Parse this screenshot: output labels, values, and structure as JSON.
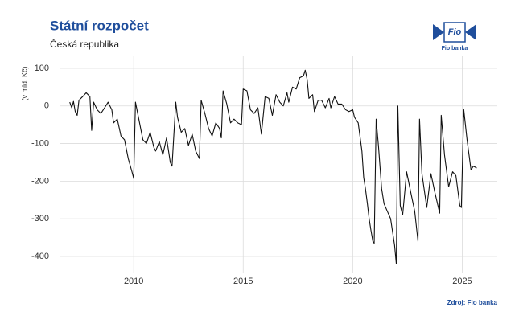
{
  "chart_data": {
    "type": "line",
    "title": "Státní rozpočet",
    "subtitle": "Česká republika",
    "y_label": "(v mld. Kč)",
    "source": "Zdroj: Fio banka",
    "logo": {
      "mark": "Fio",
      "caption": "Fio banka"
    },
    "color": "#111111",
    "grid": true,
    "xlim": [
      2006.65,
      2026.6
    ],
    "xticks": [
      2010,
      2015,
      2020,
      2025
    ],
    "ylim": [
      -445,
      132
    ],
    "yticks": [
      100,
      0,
      -100,
      -200,
      -300,
      -400
    ],
    "x": [
      2007.08,
      2007.17,
      2007.25,
      2007.33,
      2007.42,
      2007.5,
      2007.67,
      2007.83,
      2008.0,
      2008.08,
      2008.17,
      2008.33,
      2008.5,
      2008.67,
      2008.83,
      2009.0,
      2009.08,
      2009.25,
      2009.42,
      2009.58,
      2009.75,
      2009.92,
      2010.0,
      2010.08,
      2010.25,
      2010.42,
      2010.58,
      2010.75,
      2010.92,
      2011.0,
      2011.17,
      2011.33,
      2011.5,
      2011.67,
      2011.75,
      2011.92,
      2012.0,
      2012.17,
      2012.33,
      2012.5,
      2012.67,
      2012.83,
      2013.0,
      2013.08,
      2013.25,
      2013.42,
      2013.58,
      2013.75,
      2013.92,
      2014.0,
      2014.08,
      2014.25,
      2014.42,
      2014.58,
      2014.75,
      2014.92,
      2015.0,
      2015.17,
      2015.33,
      2015.5,
      2015.67,
      2015.83,
      2016.0,
      2016.17,
      2016.33,
      2016.5,
      2016.67,
      2016.83,
      2017.0,
      2017.08,
      2017.25,
      2017.42,
      2017.58,
      2017.75,
      2017.83,
      2017.92,
      2018.0,
      2018.17,
      2018.25,
      2018.42,
      2018.58,
      2018.75,
      2018.92,
      2019.0,
      2019.17,
      2019.33,
      2019.5,
      2019.67,
      2019.83,
      2020.0,
      2020.08,
      2020.25,
      2020.42,
      2020.5,
      2020.58,
      2020.67,
      2020.75,
      2020.83,
      2020.92,
      2020.98,
      2021.07,
      2021.18,
      2021.32,
      2021.43,
      2021.58,
      2021.73,
      2021.91,
      2021.99,
      2022.06,
      2022.17,
      2022.28,
      2022.46,
      2022.65,
      2022.83,
      2022.98,
      2023.05,
      2023.16,
      2023.38,
      2023.57,
      2023.75,
      2023.97,
      2024.04,
      2024.19,
      2024.38,
      2024.56,
      2024.71,
      2024.89,
      2024.96,
      2025.07,
      2025.22,
      2025.4,
      2025.51,
      2025.66
    ],
    "values": [
      10,
      -5,
      12,
      -15,
      -25,
      15,
      25,
      35,
      25,
      -65,
      10,
      -10,
      -20,
      -5,
      10,
      -10,
      -45,
      -35,
      -80,
      -90,
      -140,
      -175,
      -193,
      10,
      -40,
      -90,
      -100,
      -70,
      -110,
      -120,
      -95,
      -130,
      -85,
      -150,
      -160,
      10,
      -30,
      -70,
      -60,
      -105,
      -75,
      -120,
      -140,
      15,
      -20,
      -60,
      -80,
      -45,
      -60,
      -85,
      40,
      5,
      -45,
      -35,
      -45,
      -50,
      45,
      40,
      -10,
      -20,
      -5,
      -75,
      25,
      20,
      -25,
      30,
      10,
      0,
      35,
      10,
      50,
      45,
      75,
      80,
      95,
      70,
      20,
      30,
      -15,
      15,
      15,
      -5,
      20,
      -5,
      25,
      5,
      5,
      -10,
      -15,
      -10,
      -30,
      -45,
      -120,
      -190,
      -220,
      -260,
      -300,
      -330,
      -360,
      -365,
      -35,
      -110,
      -220,
      -260,
      -280,
      -300,
      -370,
      -420,
      0,
      -265,
      -290,
      -175,
      -230,
      -280,
      -360,
      -35,
      -180,
      -270,
      -180,
      -230,
      -285,
      -25,
      -130,
      -215,
      -175,
      -185,
      -265,
      -270,
      -10,
      -90,
      -170,
      -160,
      -165
    ]
  }
}
